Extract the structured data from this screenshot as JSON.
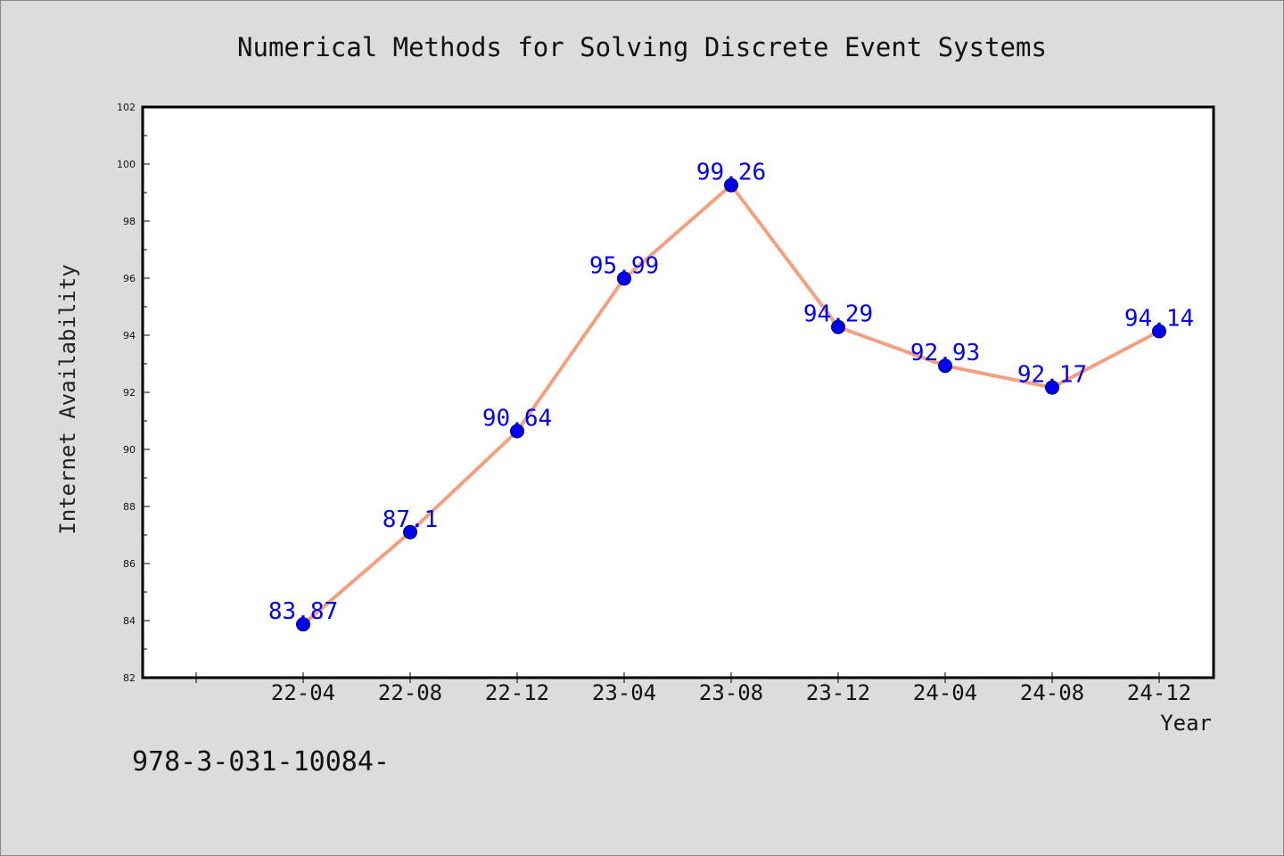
{
  "chart_data": {
    "type": "line",
    "title": "Numerical Methods for Solving Discrete Event Systems",
    "xlabel": "Year",
    "ylabel": "Internet Availability",
    "categories": [
      "22-04",
      "22-08",
      "22-12",
      "23-04",
      "23-08",
      "23-12",
      "24-04",
      "24-08",
      "24-12"
    ],
    "series": [
      {
        "values": [
          83.87,
          87.1,
          90.64,
          95.99,
          99.26,
          94.29,
          92.93,
          92.17,
          94.14
        ],
        "labels": [
          "83.87",
          "87.1",
          "90.64",
          "95.99",
          "99.26",
          "94.29",
          "92.93",
          "92.17",
          "94.14"
        ],
        "line_color": "#f4a080",
        "marker_color": "#0000ee"
      }
    ],
    "ylim": [
      82,
      102
    ],
    "yticks": [
      "82",
      "84",
      "86",
      "88",
      "90",
      "92",
      "94",
      "96",
      "98",
      "100",
      "102"
    ],
    "grid": false,
    "legend": "none"
  },
  "footnote": "978-3-031-10084-"
}
